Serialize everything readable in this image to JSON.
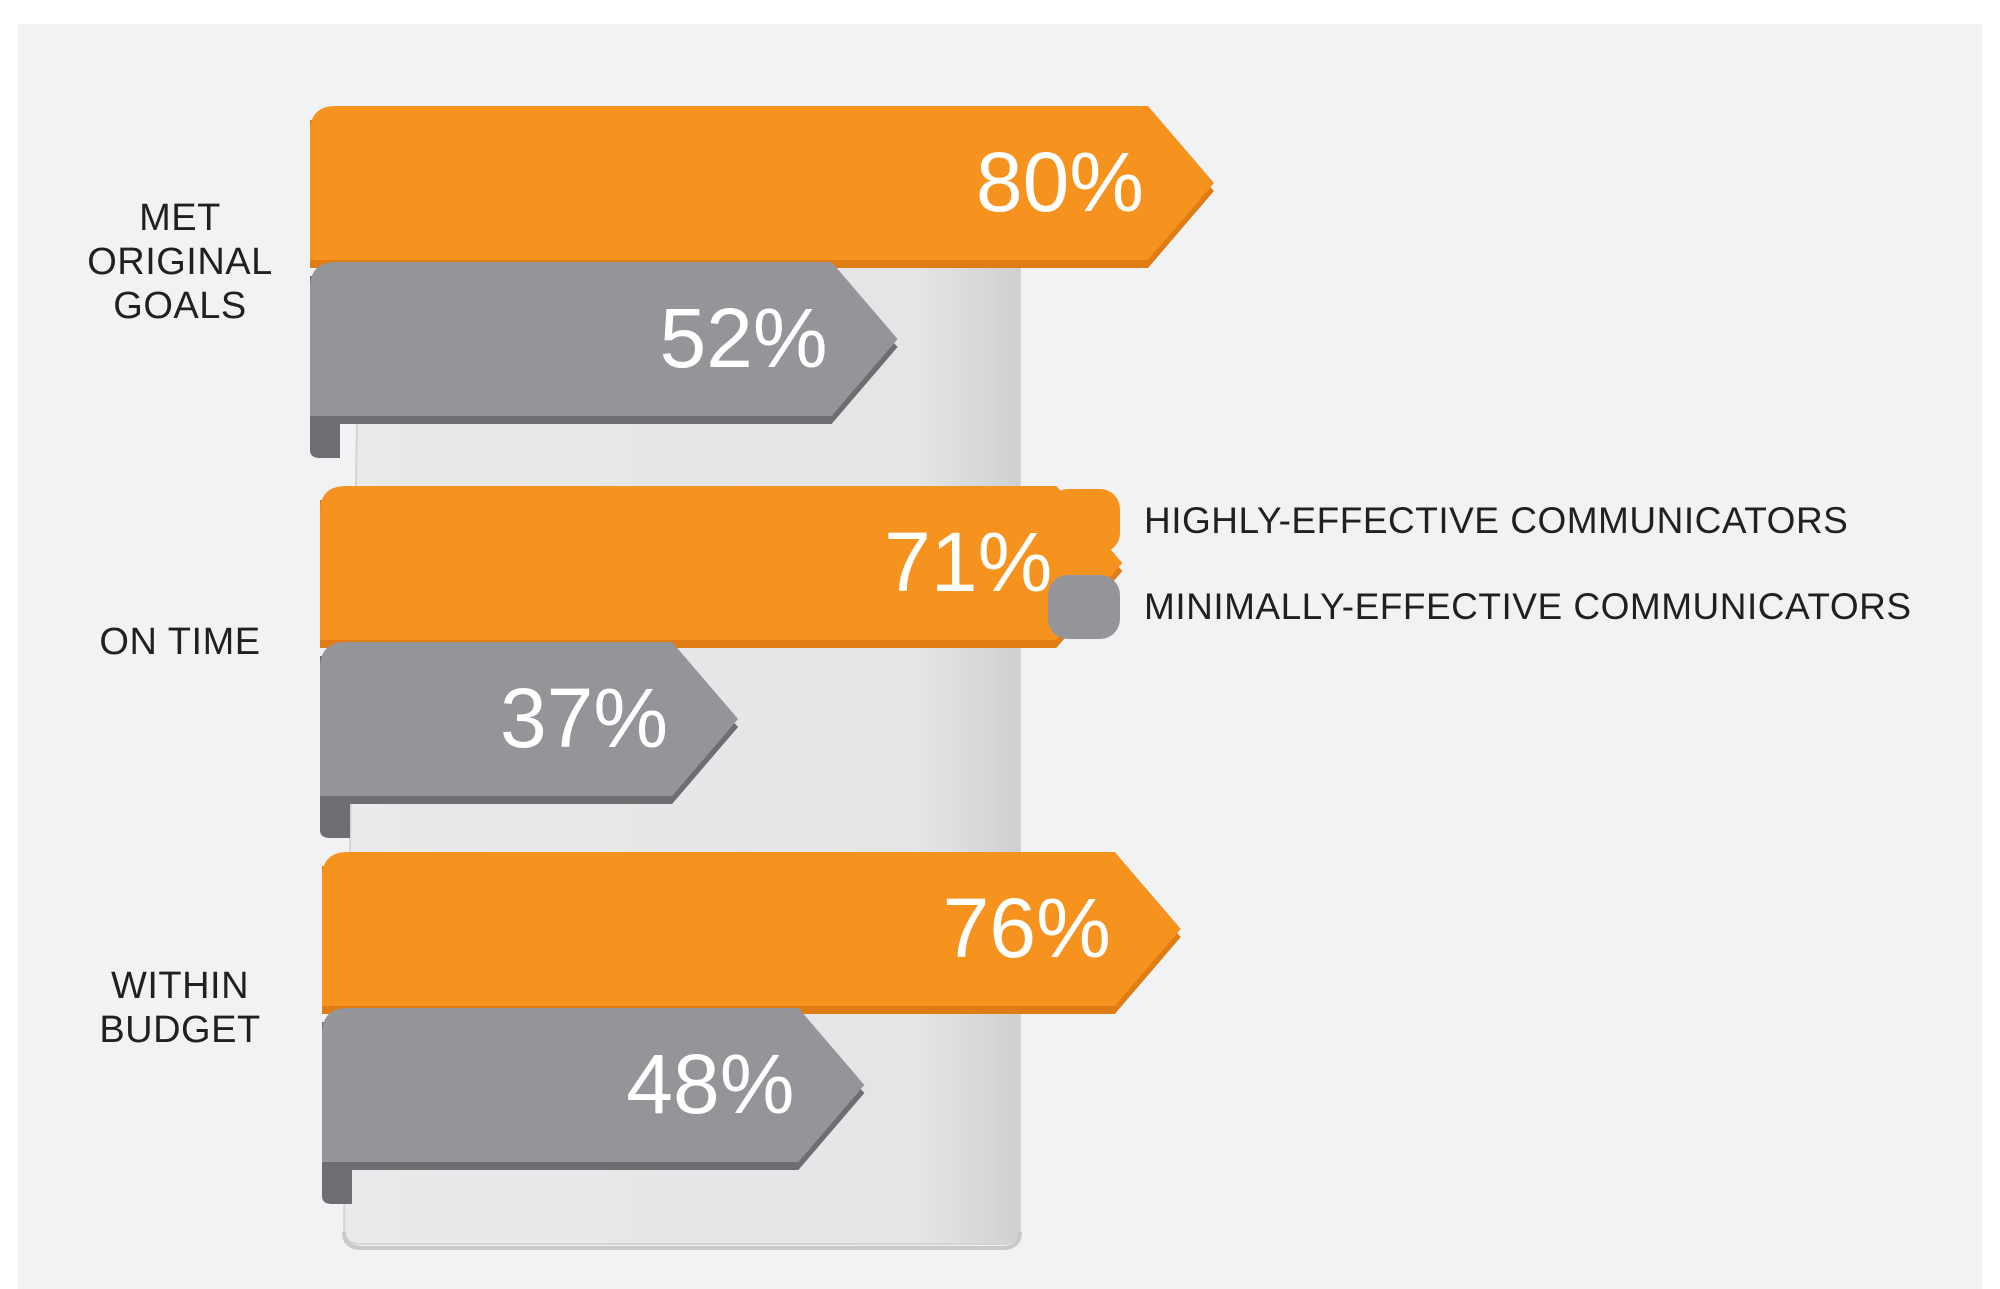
{
  "chart_data": {
    "type": "bar",
    "orientation": "horizontal",
    "categories": [
      "MET\nORIGINAL\nGOALS",
      "ON TIME",
      "WITHIN\nBUDGET"
    ],
    "series": [
      {
        "name": "HIGHLY-EFFECTIVE COMMUNICATORS",
        "values": [
          80,
          71,
          76
        ],
        "labels": [
          "80%",
          "71%",
          "76%"
        ],
        "color": "#f6921e"
      },
      {
        "name": "MINIMALLY-EFFECTIVE COMMUNICATORS",
        "values": [
          52,
          37,
          48
        ],
        "labels": [
          "52%",
          "37%",
          "48%"
        ],
        "color": "#939598"
      }
    ],
    "legend_position": "right",
    "grid": false
  }
}
